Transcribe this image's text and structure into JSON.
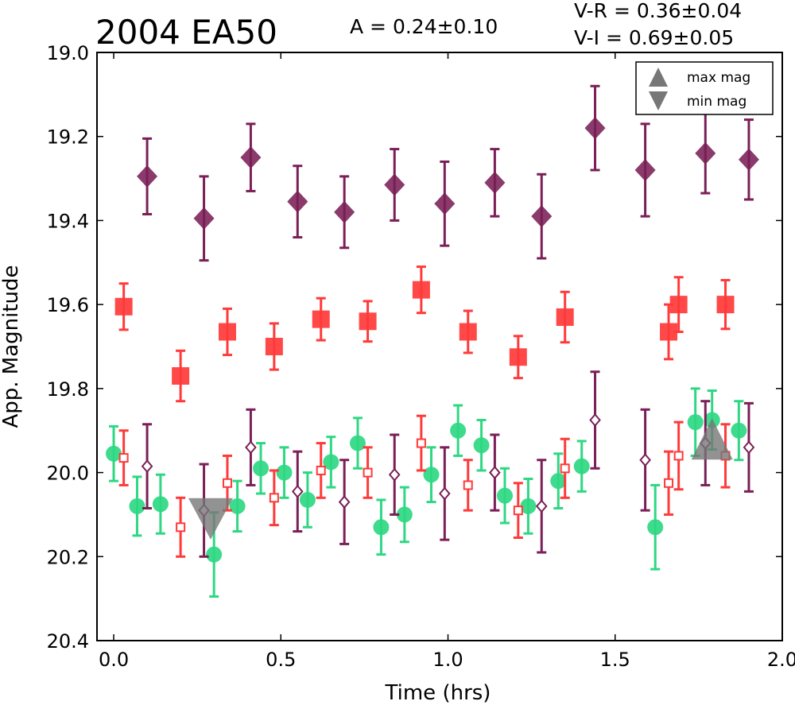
{
  "chart_data": {
    "type": "scatter",
    "title": "2004 EA50",
    "amplitude_text": "A  = 0.24±0.10",
    "color_index_1": "V-R = 0.36±0.04",
    "color_index_2": "V-I  = 0.69±0.05",
    "xlabel": "Time (hrs)",
    "ylabel": "App. Magnitude",
    "xlim": [
      -0.05,
      2.0
    ],
    "ylim": [
      20.4,
      19.0
    ],
    "y_inverted": true,
    "xticks": [
      "0.0",
      "0.5",
      "1.0",
      "1.5",
      "2.0"
    ],
    "yticks": [
      "19.0",
      "19.2",
      "19.4",
      "19.6",
      "19.8",
      "20.0",
      "20.2",
      "20.4"
    ],
    "legend": {
      "position": "upper right",
      "entries": [
        {
          "label": "max mag",
          "marker": "triangle-up",
          "color": "#777777"
        },
        {
          "label": "min mag",
          "marker": "triangle-down",
          "color": "#777777"
        }
      ]
    },
    "series": [
      {
        "marker": "diamond-filled",
        "color": "#7a1f57",
        "points": [
          {
            "x": 0.1,
            "y": 19.295,
            "err": 0.09
          },
          {
            "x": 0.27,
            "y": 19.395,
            "err": 0.1
          },
          {
            "x": 0.41,
            "y": 19.25,
            "err": 0.08
          },
          {
            "x": 0.55,
            "y": 19.355,
            "err": 0.085
          },
          {
            "x": 0.69,
            "y": 19.38,
            "err": 0.085
          },
          {
            "x": 0.84,
            "y": 19.315,
            "err": 0.085
          },
          {
            "x": 0.99,
            "y": 19.36,
            "err": 0.1
          },
          {
            "x": 1.14,
            "y": 19.31,
            "err": 0.08
          },
          {
            "x": 1.28,
            "y": 19.39,
            "err": 0.1
          },
          {
            "x": 1.44,
            "y": 19.18,
            "err": 0.1
          },
          {
            "x": 1.59,
            "y": 19.28,
            "err": 0.11
          },
          {
            "x": 1.77,
            "y": 19.24,
            "err": 0.095
          },
          {
            "x": 1.9,
            "y": 19.255,
            "err": 0.095
          }
        ]
      },
      {
        "marker": "square-filled",
        "color": "#ff3a3a",
        "points": [
          {
            "x": 0.03,
            "y": 19.605,
            "err": 0.055
          },
          {
            "x": 0.2,
            "y": 19.77,
            "err": 0.06
          },
          {
            "x": 0.34,
            "y": 19.665,
            "err": 0.055
          },
          {
            "x": 0.48,
            "y": 19.7,
            "err": 0.055
          },
          {
            "x": 0.62,
            "y": 19.635,
            "err": 0.05
          },
          {
            "x": 0.76,
            "y": 19.64,
            "err": 0.048
          },
          {
            "x": 0.92,
            "y": 19.565,
            "err": 0.055
          },
          {
            "x": 1.06,
            "y": 19.665,
            "err": 0.05
          },
          {
            "x": 1.21,
            "y": 19.725,
            "err": 0.05
          },
          {
            "x": 1.35,
            "y": 19.63,
            "err": 0.06
          },
          {
            "x": 1.66,
            "y": 19.665,
            "err": 0.065
          },
          {
            "x": 1.69,
            "y": 19.6,
            "err": 0.065
          },
          {
            "x": 1.83,
            "y": 19.6,
            "err": 0.058
          }
        ]
      },
      {
        "marker": "circle-filled",
        "color": "#2ed883",
        "points": [
          {
            "x": 0.0,
            "y": 19.955,
            "err": 0.065
          },
          {
            "x": 0.07,
            "y": 20.08,
            "err": 0.07
          },
          {
            "x": 0.14,
            "y": 20.075,
            "err": 0.07
          },
          {
            "x": 0.3,
            "y": 20.195,
            "err": 0.1
          },
          {
            "x": 0.37,
            "y": 20.08,
            "err": 0.06
          },
          {
            "x": 0.44,
            "y": 19.99,
            "err": 0.06
          },
          {
            "x": 0.51,
            "y": 20.0,
            "err": 0.06
          },
          {
            "x": 0.58,
            "y": 20.065,
            "err": 0.065
          },
          {
            "x": 0.65,
            "y": 19.975,
            "err": 0.06
          },
          {
            "x": 0.73,
            "y": 19.93,
            "err": 0.06
          },
          {
            "x": 0.8,
            "y": 20.13,
            "err": 0.065
          },
          {
            "x": 0.87,
            "y": 20.1,
            "err": 0.065
          },
          {
            "x": 0.95,
            "y": 20.005,
            "err": 0.065
          },
          {
            "x": 1.03,
            "y": 19.9,
            "err": 0.06
          },
          {
            "x": 1.1,
            "y": 19.935,
            "err": 0.06
          },
          {
            "x": 1.17,
            "y": 20.055,
            "err": 0.065
          },
          {
            "x": 1.24,
            "y": 20.08,
            "err": 0.065
          },
          {
            "x": 1.33,
            "y": 20.02,
            "err": 0.065
          },
          {
            "x": 1.4,
            "y": 19.985,
            "err": 0.06
          },
          {
            "x": 1.62,
            "y": 20.13,
            "err": 0.1
          },
          {
            "x": 1.74,
            "y": 19.88,
            "err": 0.08
          },
          {
            "x": 1.79,
            "y": 19.875,
            "err": 0.07
          },
          {
            "x": 1.87,
            "y": 19.9,
            "err": 0.07
          }
        ]
      },
      {
        "marker": "square-open",
        "color": "#ff3a3a",
        "points": [
          {
            "x": 0.03,
            "y": 19.965,
            "err": 0.065
          },
          {
            "x": 0.2,
            "y": 20.13,
            "err": 0.07
          },
          {
            "x": 0.34,
            "y": 20.025,
            "err": 0.065
          },
          {
            "x": 0.48,
            "y": 20.06,
            "err": 0.065
          },
          {
            "x": 0.62,
            "y": 19.995,
            "err": 0.065
          },
          {
            "x": 0.76,
            "y": 20.0,
            "err": 0.06
          },
          {
            "x": 0.92,
            "y": 19.93,
            "err": 0.065
          },
          {
            "x": 1.06,
            "y": 20.03,
            "err": 0.06
          },
          {
            "x": 1.21,
            "y": 20.09,
            "err": 0.065
          },
          {
            "x": 1.35,
            "y": 19.99,
            "err": 0.07
          },
          {
            "x": 1.66,
            "y": 20.025,
            "err": 0.075
          },
          {
            "x": 1.69,
            "y": 19.96,
            "err": 0.08
          },
          {
            "x": 1.83,
            "y": 19.96,
            "err": 0.075
          }
        ]
      },
      {
        "marker": "diamond-open",
        "color": "#7a1f57",
        "points": [
          {
            "x": 0.1,
            "y": 19.985,
            "err": 0.1
          },
          {
            "x": 0.27,
            "y": 20.09,
            "err": 0.11
          },
          {
            "x": 0.41,
            "y": 19.94,
            "err": 0.09
          },
          {
            "x": 0.55,
            "y": 20.045,
            "err": 0.095
          },
          {
            "x": 0.69,
            "y": 20.07,
            "err": 0.1
          },
          {
            "x": 0.84,
            "y": 20.005,
            "err": 0.095
          },
          {
            "x": 0.99,
            "y": 20.05,
            "err": 0.11
          },
          {
            "x": 1.14,
            "y": 20.0,
            "err": 0.09
          },
          {
            "x": 1.28,
            "y": 20.08,
            "err": 0.11
          },
          {
            "x": 1.44,
            "y": 19.875,
            "err": 0.115
          },
          {
            "x": 1.59,
            "y": 19.97,
            "err": 0.12
          },
          {
            "x": 1.77,
            "y": 19.93,
            "err": 0.1
          },
          {
            "x": 1.9,
            "y": 19.94,
            "err": 0.105
          }
        ]
      }
    ],
    "extrema": [
      {
        "type": "max",
        "x": 1.79,
        "y": 19.92,
        "color": "#777777"
      },
      {
        "type": "min",
        "x": 0.29,
        "y": 20.11,
        "color": "#777777"
      }
    ]
  }
}
